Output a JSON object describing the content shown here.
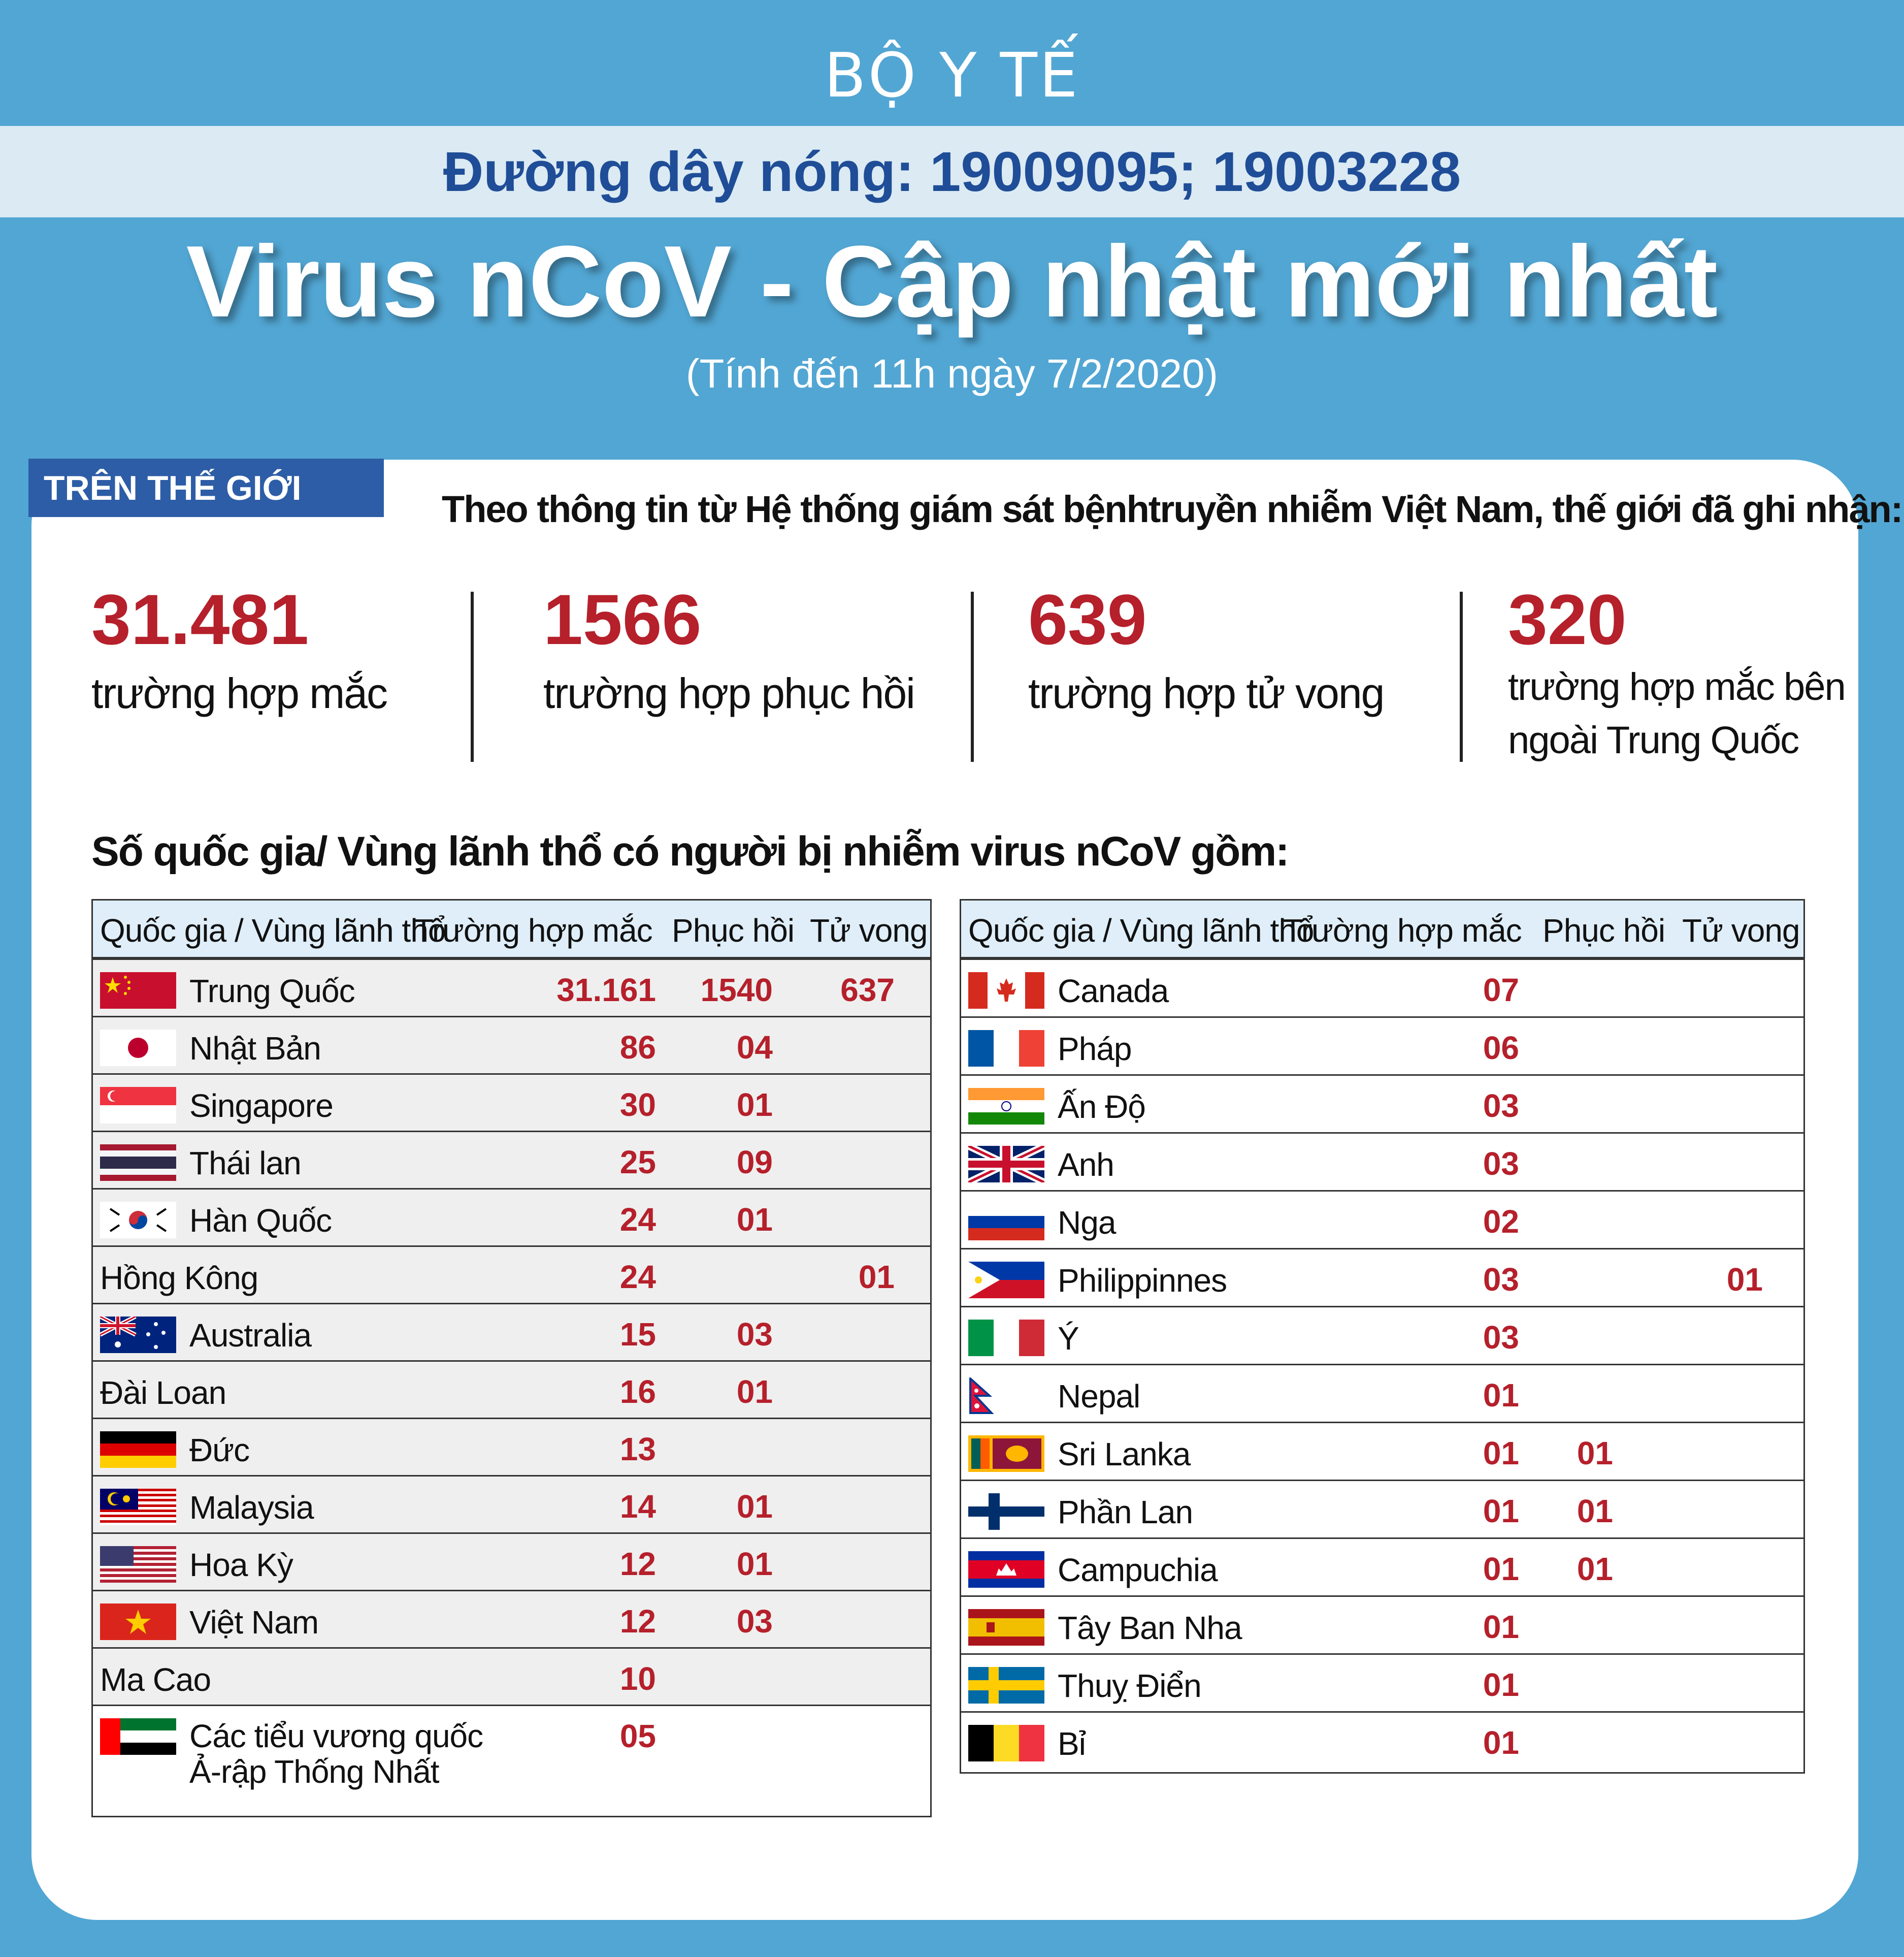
{
  "header": {
    "ministry": "BỘ Y TẾ",
    "hotline": "Đường dây nóng: 19009095; 19003228",
    "title": "Virus nCoV - Cập nhật mới nhất",
    "subtitle": "(Tính đến 11h ngày 7/2/2020)"
  },
  "world": {
    "tag": "TRÊN THẾ GIỚI",
    "intro": "Theo thông tin từ Hệ thống giám sát bệnhtruyền nhiễm Việt Nam, thế giới đã ghi nhận:",
    "stats": [
      {
        "number": "31.481",
        "label": "trường hợp mắc",
        "label2": ""
      },
      {
        "number": "1566",
        "label": "trường hợp phục hồi",
        "label2": ""
      },
      {
        "number": "639",
        "label": "trường hợp tử vong",
        "label2": ""
      },
      {
        "number": "320",
        "label": "trường hợp mắc bên",
        "label2": "ngoài Trung Quốc"
      }
    ]
  },
  "countries_heading": "Số quốc gia/ Vùng lãnh thổ có người bị nhiễm virus nCoV gồm:",
  "columns": {
    "country": "Quốc gia / Vùng lãnh thổ",
    "cases": "Trường hợp mắc",
    "recovered": "Phục hồi",
    "deaths": "Tử vong"
  },
  "colors": {
    "background": "#52a6d3",
    "accent_red": "#b5202b",
    "hotline_blue": "#1f4d97",
    "tag_blue": "#2d5da6",
    "header_row": "#dfeef9"
  },
  "left_table": [
    {
      "flag": "china-flag",
      "name": "Trung Quốc",
      "cases": "31.161",
      "recovered": "1540",
      "deaths": "637"
    },
    {
      "flag": "japan-flag",
      "name": "Nhật Bản",
      "cases": "86",
      "recovered": "04",
      "deaths": ""
    },
    {
      "flag": "singapore-flag",
      "name": "Singapore",
      "cases": "30",
      "recovered": "01",
      "deaths": ""
    },
    {
      "flag": "thailand-flag",
      "name": "Thái lan",
      "cases": "25",
      "recovered": "09",
      "deaths": ""
    },
    {
      "flag": "korea-flag",
      "name": "Hàn Quốc",
      "cases": "24",
      "recovered": "01",
      "deaths": ""
    },
    {
      "flag": "",
      "name": "Hồng Kông",
      "cases": "24",
      "recovered": "",
      "deaths": "01"
    },
    {
      "flag": "australia-flag",
      "name": "Australia",
      "cases": "15",
      "recovered": "03",
      "deaths": ""
    },
    {
      "flag": "",
      "name": "Đài Loan",
      "cases": "16",
      "recovered": "01",
      "deaths": ""
    },
    {
      "flag": "germany-flag",
      "name": "Đức",
      "cases": "13",
      "recovered": "",
      "deaths": ""
    },
    {
      "flag": "malaysia-flag",
      "name": "Malaysia",
      "cases": "14",
      "recovered": "01",
      "deaths": ""
    },
    {
      "flag": "usa-flag",
      "name": "Hoa Kỳ",
      "cases": "12",
      "recovered": "01",
      "deaths": ""
    },
    {
      "flag": "vietnam-flag",
      "name": "Việt Nam",
      "cases": "12",
      "recovered": "03",
      "deaths": ""
    },
    {
      "flag": "",
      "name": "Ma Cao",
      "cases": "10",
      "recovered": "",
      "deaths": ""
    },
    {
      "flag": "uae-flag",
      "name": "Các tiểu vương quốc",
      "name2": "Ả-rập Thống Nhất",
      "cases": "05",
      "recovered": "",
      "deaths": ""
    }
  ],
  "right_table": [
    {
      "flag": "canada-flag",
      "name": "Canada",
      "cases": "07",
      "recovered": "",
      "deaths": ""
    },
    {
      "flag": "france-flag",
      "name": "Pháp",
      "cases": "06",
      "recovered": "",
      "deaths": ""
    },
    {
      "flag": "india-flag",
      "name": "Ấn Độ",
      "cases": "03",
      "recovered": "",
      "deaths": ""
    },
    {
      "flag": "uk-flag",
      "name": "Anh",
      "cases": "03",
      "recovered": "",
      "deaths": ""
    },
    {
      "flag": "russia-flag",
      "name": "Nga",
      "cases": "02",
      "recovered": "",
      "deaths": ""
    },
    {
      "flag": "philippines-flag",
      "name": "Philippinnes",
      "cases": "03",
      "recovered": "",
      "deaths": "01"
    },
    {
      "flag": "italy-flag",
      "name": "Ý",
      "cases": "03",
      "recovered": "",
      "deaths": ""
    },
    {
      "flag": "nepal-flag",
      "name": "Nepal",
      "cases": "01",
      "recovered": "",
      "deaths": ""
    },
    {
      "flag": "srilanka-flag",
      "name": "Sri Lanka",
      "cases": "01",
      "recovered": "01",
      "deaths": ""
    },
    {
      "flag": "finland-flag",
      "name": "Phần Lan",
      "cases": "01",
      "recovered": "01",
      "deaths": ""
    },
    {
      "flag": "cambodia-flag",
      "name": "Campuchia",
      "cases": "01",
      "recovered": "01",
      "deaths": ""
    },
    {
      "flag": "spain-flag",
      "name": "Tây Ban Nha",
      "cases": "01",
      "recovered": "",
      "deaths": ""
    },
    {
      "flag": "sweden-flag",
      "name": "Thuỵ Điển",
      "cases": "01",
      "recovered": "",
      "deaths": ""
    },
    {
      "flag": "belgium-flag",
      "name": "Bỉ",
      "cases": "01",
      "recovered": "",
      "deaths": ""
    }
  ]
}
